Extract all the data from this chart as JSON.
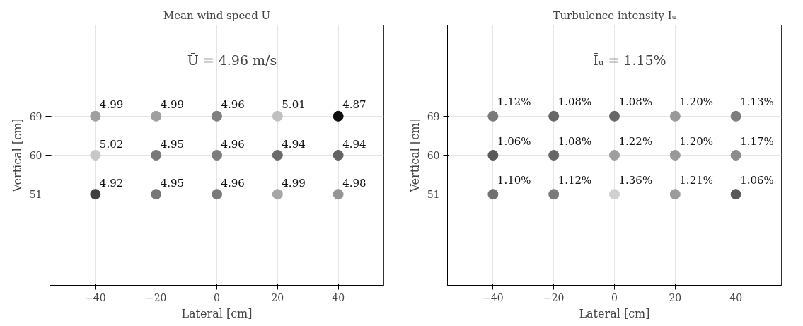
{
  "chart_data": [
    {
      "type": "scatter",
      "title": "Mean wind speed U",
      "xlabel": "Lateral [cm]",
      "ylabel": "Vertical [cm]",
      "xlim": [
        -55,
        55
      ],
      "ylim": [
        30,
        90
      ],
      "xticks": [
        -40,
        -20,
        0,
        20,
        40
      ],
      "yticks": [
        51,
        60,
        69
      ],
      "grid": true,
      "marker": "circle",
      "annotations": [
        "Ū = 4.96 m/s",
        {
          "text": "4.99",
          "x": -40,
          "y": 69
        },
        {
          "text": "4.99",
          "x": -20,
          "y": 69
        },
        {
          "text": "4.96",
          "x": 0,
          "y": 69
        },
        {
          "text": "5.01",
          "x": 20,
          "y": 69
        },
        {
          "text": "4.87",
          "x": 40,
          "y": 69
        },
        {
          "text": "5.02",
          "x": -40,
          "y": 60
        },
        {
          "text": "4.95",
          "x": -20,
          "y": 60
        },
        {
          "text": "4.96",
          "x": 0,
          "y": 60
        },
        {
          "text": "4.94",
          "x": 20,
          "y": 60
        },
        {
          "text": "4.94",
          "x": 40,
          "y": 60
        },
        {
          "text": "4.92",
          "x": -40,
          "y": 51
        },
        {
          "text": "4.95",
          "x": -20,
          "y": 51
        },
        {
          "text": "4.96",
          "x": 0,
          "y": 51
        },
        {
          "text": "4.99",
          "x": 20,
          "y": 51
        },
        {
          "text": "4.98",
          "x": 40,
          "y": 51
        }
      ],
      "series": [
        {
          "x": [
            -40,
            -20,
            0,
            20,
            40,
            -40,
            -20,
            0,
            20,
            40,
            -40,
            -20,
            0,
            20,
            40
          ],
          "values": [
            69,
            69,
            69,
            69,
            69,
            60,
            60,
            60,
            60,
            60,
            51,
            51,
            51,
            51,
            51
          ],
          "colors": [
            "#a0a0a0",
            "#a0a0a0",
            "#808080",
            "#c0c0c0",
            "#0d0d0d",
            "#c8c8c8",
            "#787878",
            "#7c7c7c",
            "#6a6a6a",
            "#646464",
            "#404040",
            "#777777",
            "#7a7a7a",
            "#a6a6a6",
            "#959595"
          ]
        }
      ]
    },
    {
      "type": "scatter",
      "title": "Turbulence intensity Iᵤ",
      "xlabel": "Lateral [cm]",
      "ylabel": "Vertical [cm]",
      "xlim": [
        -55,
        55
      ],
      "ylim": [
        30,
        90
      ],
      "xticks": [
        -40,
        -20,
        0,
        20,
        40
      ],
      "yticks": [
        51,
        60,
        69
      ],
      "grid": true,
      "marker": "circle",
      "annotations": [
        "Īᵤ = 1.15%",
        {
          "text": "1.12%",
          "x": -40,
          "y": 69
        },
        {
          "text": "1.08%",
          "x": -20,
          "y": 69
        },
        {
          "text": "1.08%",
          "x": 0,
          "y": 69
        },
        {
          "text": "1.20%",
          "x": 20,
          "y": 69
        },
        {
          "text": "1.13%",
          "x": 40,
          "y": 69
        },
        {
          "text": "1.06%",
          "x": -40,
          "y": 60
        },
        {
          "text": "1.08%",
          "x": -20,
          "y": 60
        },
        {
          "text": "1.22%",
          "x": 0,
          "y": 60
        },
        {
          "text": "1.20%",
          "x": 20,
          "y": 60
        },
        {
          "text": "1.17%",
          "x": 40,
          "y": 60
        },
        {
          "text": "1.10%",
          "x": -40,
          "y": 51
        },
        {
          "text": "1.12%",
          "x": -20,
          "y": 51
        },
        {
          "text": "1.36%",
          "x": 0,
          "y": 51
        },
        {
          "text": "1.21%",
          "x": 20,
          "y": 51
        },
        {
          "text": "1.06%",
          "x": 40,
          "y": 51
        }
      ],
      "series": [
        {
          "x": [
            -40,
            -20,
            0,
            20,
            40,
            -40,
            -20,
            0,
            20,
            40,
            -40,
            -20,
            0,
            20,
            40
          ],
          "values": [
            69,
            69,
            69,
            69,
            69,
            60,
            60,
            60,
            60,
            60,
            51,
            51,
            51,
            51,
            51
          ],
          "colors": [
            "#7a7a7a",
            "#676767",
            "#676767",
            "#999999",
            "#7d7d7d",
            "#5a5a5a",
            "#676767",
            "#9e9e9e",
            "#999999",
            "#8c8c8c",
            "#707070",
            "#7a7a7a",
            "#d0d0d0",
            "#9b9b9b",
            "#5a5a5a"
          ]
        }
      ]
    }
  ]
}
